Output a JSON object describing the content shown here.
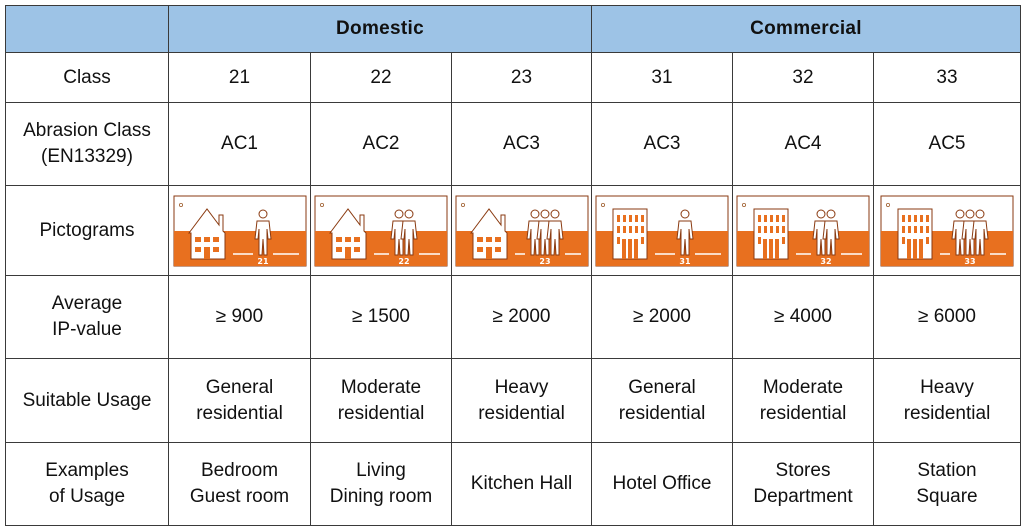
{
  "header": {
    "groups": [
      {
        "label": "Domestic",
        "span": 3
      },
      {
        "label": "Commercial",
        "span": 3
      }
    ]
  },
  "rows": {
    "class": {
      "label": "Class",
      "values": [
        "21",
        "22",
        "23",
        "31",
        "32",
        "33"
      ]
    },
    "abrasion": {
      "label_line1": "Abrasion Class",
      "label_line2": "(EN13329)",
      "values": [
        "AC1",
        "AC2",
        "AC3",
        "AC3",
        "AC4",
        "AC5"
      ]
    },
    "pictograms": {
      "label": "Pictograms",
      "items": [
        {
          "building": "house",
          "people": 1,
          "number": "21"
        },
        {
          "building": "house",
          "people": 2,
          "number": "22"
        },
        {
          "building": "house",
          "people": 3,
          "number": "23"
        },
        {
          "building": "office-building",
          "people": 1,
          "number": "31"
        },
        {
          "building": "office-building",
          "people": 2,
          "number": "32"
        },
        {
          "building": "office-building",
          "people": 3,
          "number": "33"
        }
      ]
    },
    "ip_value": {
      "label_line1": "Average",
      "label_line2": "IP-value",
      "values": [
        "≥ 900",
        "≥ 1500",
        "≥ 2000",
        "≥ 2000",
        "≥ 4000",
        "≥ 6000"
      ]
    },
    "suitable_usage": {
      "label": "Suitable Usage",
      "values": [
        [
          "General",
          "residential"
        ],
        [
          "Moderate",
          "residential"
        ],
        [
          "Heavy",
          "residential"
        ],
        [
          "General",
          "residential"
        ],
        [
          "Moderate",
          "residential"
        ],
        [
          "Heavy",
          "residential"
        ]
      ]
    },
    "examples": {
      "label_line1": "Examples",
      "label_line2": "of Usage",
      "values": [
        [
          "Bedroom",
          "Guest room"
        ],
        [
          "Living",
          "Dining room"
        ],
        [
          "Kitchen Hall"
        ],
        [
          "Hotel Office"
        ],
        [
          "Stores",
          "Department"
        ],
        [
          "Station",
          "Square"
        ]
      ]
    }
  },
  "colors": {
    "header_bg": "#9dc3e6",
    "pictogram_orange": "#e8701f",
    "border": "#3a3a3a"
  }
}
